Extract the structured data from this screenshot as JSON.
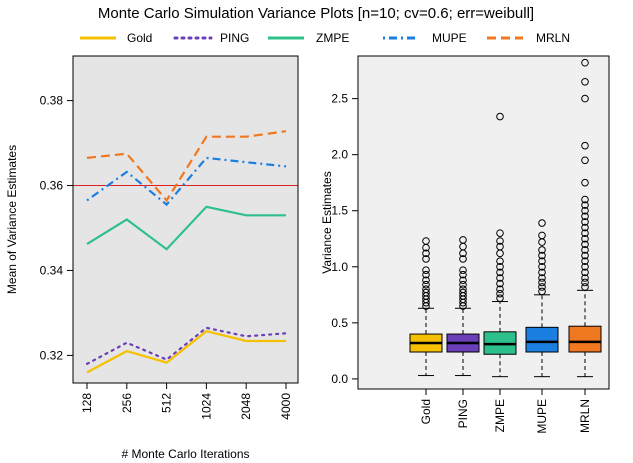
{
  "title": "Monte Carlo Simulation Variance Plots [n=10;  cv=0.6;  err=weibull]",
  "legend": [
    {
      "label": "Gold",
      "color": "#F5C000",
      "dash": "solid"
    },
    {
      "label": "PING",
      "color": "#6B3FB8",
      "dash": "dotted"
    },
    {
      "label": "ZMPE",
      "color": "#2EC08A",
      "dash": "solid"
    },
    {
      "label": "MUPE",
      "color": "#1A7FE0",
      "dash": "dotdash"
    },
    {
      "label": "MRLN",
      "color": "#F07820",
      "dash": "dashed"
    }
  ],
  "chart_data": [
    {
      "type": "line",
      "xlabel": "# Monte Carlo Iterations",
      "ylabel": "Mean  of Variance Estimates",
      "categories": [
        "128",
        "256",
        "512",
        "1024",
        "2048",
        "4000"
      ],
      "ylim": [
        0.3135,
        0.3905
      ],
      "yticks": [
        0.32,
        0.34,
        0.36,
        0.38
      ],
      "ytick_labels": [
        "0.32",
        "0.34",
        "0.36",
        "0.38"
      ],
      "reference_line": {
        "y": 0.36,
        "color": "#E02020"
      },
      "background": "#E5E5E5",
      "series": [
        {
          "name": "Gold",
          "values": [
            0.316,
            0.321,
            0.3183,
            0.3257,
            0.3234,
            0.3234
          ]
        },
        {
          "name": "PING",
          "values": [
            0.318,
            0.323,
            0.319,
            0.3265,
            0.3245,
            0.3252
          ]
        },
        {
          "name": "ZMPE",
          "values": [
            0.3462,
            0.352,
            0.345,
            0.355,
            0.353,
            0.353
          ]
        },
        {
          "name": "MUPE",
          "values": [
            0.3565,
            0.3632,
            0.3555,
            0.3665,
            0.3655,
            0.3645
          ]
        },
        {
          "name": "MRLN",
          "values": [
            0.3665,
            0.3675,
            0.3565,
            0.3715,
            0.3715,
            0.3728
          ]
        }
      ]
    },
    {
      "type": "boxplot",
      "ylabel": "Variance Estimates",
      "categories": [
        "Gold",
        "PING",
        "ZMPE",
        "MUPE",
        "MRLN"
      ],
      "ylim": [
        -0.09,
        2.88
      ],
      "yticks": [
        0.0,
        0.5,
        1.0,
        1.5,
        2.0,
        2.5
      ],
      "ytick_labels": [
        "0.0",
        "0.5",
        "1.0",
        "1.5",
        "2.0",
        "2.5"
      ],
      "background": "#F0F0F0",
      "boxes": [
        {
          "name": "Gold",
          "whisker_low": 0.03,
          "q1": 0.24,
          "median": 0.32,
          "q3": 0.4,
          "whisker_high": 0.63,
          "outliers": [
            0.65,
            0.68,
            0.71,
            0.74,
            0.77,
            0.8,
            0.84,
            0.88,
            0.93,
            0.97,
            1.07,
            1.12,
            1.17,
            1.23
          ]
        },
        {
          "name": "PING",
          "whisker_low": 0.03,
          "q1": 0.24,
          "median": 0.32,
          "q3": 0.4,
          "whisker_high": 0.63,
          "outliers": [
            0.65,
            0.68,
            0.71,
            0.74,
            0.77,
            0.8,
            0.84,
            0.88,
            0.93,
            0.97,
            1.07,
            1.12,
            1.18,
            1.24
          ]
        },
        {
          "name": "ZMPE",
          "whisker_low": 0.02,
          "q1": 0.22,
          "median": 0.31,
          "q3": 0.42,
          "whisker_high": 0.69,
          "outliers": [
            0.72,
            0.76,
            0.8,
            0.85,
            0.9,
            0.95,
            1.0,
            1.05,
            1.12,
            1.18,
            1.23,
            1.3,
            2.34
          ]
        },
        {
          "name": "MUPE",
          "whisker_low": 0.02,
          "q1": 0.24,
          "median": 0.33,
          "q3": 0.46,
          "whisker_high": 0.75,
          "outliers": [
            0.78,
            0.82,
            0.86,
            0.9,
            0.95,
            1.0,
            1.05,
            1.1,
            1.15,
            1.22,
            1.28,
            1.39
          ]
        },
        {
          "name": "MRLN",
          "whisker_low": 0.02,
          "q1": 0.24,
          "median": 0.33,
          "q3": 0.47,
          "whisker_high": 0.79,
          "outliers": [
            0.82,
            0.86,
            0.9,
            0.95,
            1.0,
            1.05,
            1.1,
            1.15,
            1.2,
            1.25,
            1.3,
            1.35,
            1.4,
            1.45,
            1.5,
            1.55,
            1.6,
            1.75,
            1.95,
            2.08,
            2.5,
            2.65,
            2.82
          ]
        }
      ]
    }
  ]
}
